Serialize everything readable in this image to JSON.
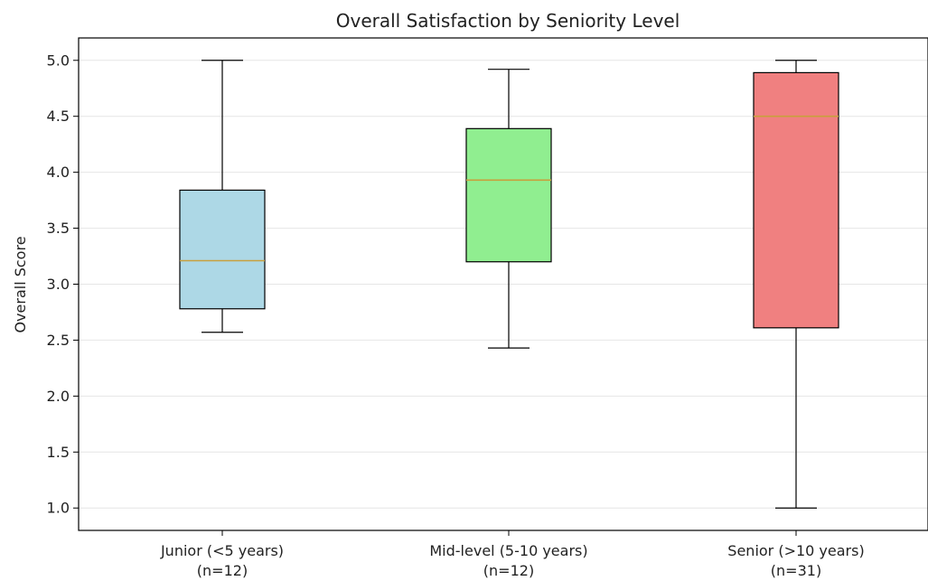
{
  "chart_data": {
    "type": "box",
    "title": "Overall Satisfaction by Seniority Level",
    "xlabel": "",
    "ylabel": "Overall Score",
    "ylim": [
      0.8,
      5.2
    ],
    "yticks": [
      "1.0",
      "1.5",
      "2.0",
      "2.5",
      "3.0",
      "3.5",
      "4.0",
      "4.5",
      "5.0"
    ],
    "grid": "horizontal",
    "boxes": [
      {
        "label_line1": "Junior (<5 years)",
        "label_line2": "(n=12)",
        "whisker_low": 2.57,
        "q1": 2.78,
        "median": 3.21,
        "q3": 3.84,
        "whisker_high": 5.0,
        "color": "#add8e6"
      },
      {
        "label_line1": "Mid-level (5-10 years)",
        "label_line2": "(n=12)",
        "whisker_low": 2.43,
        "q1": 3.2,
        "median": 3.93,
        "q3": 4.39,
        "whisker_high": 4.92,
        "color": "#90ee90"
      },
      {
        "label_line1": "Senior (>10 years)",
        "label_line2": "(n=31)",
        "whisker_low": 1.0,
        "q1": 2.61,
        "median": 4.5,
        "q3": 4.89,
        "whisker_high": 5.0,
        "color": "#f08080"
      }
    ],
    "median_color": "#c8a03c"
  }
}
